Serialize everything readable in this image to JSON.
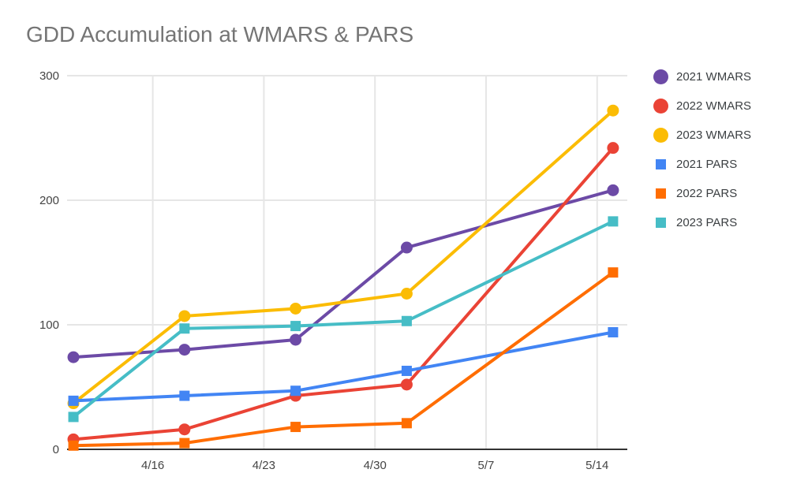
{
  "title": "GDD Accumulation at WMARS & PARS",
  "colors": {
    "background": "#ffffff",
    "title_text": "#757575",
    "axis_label_text": "#444444",
    "legend_text": "#3c4043",
    "gridline": "#e6e6e6",
    "axis_line": "#333333"
  },
  "chart_data": {
    "type": "line",
    "title": "GDD Accumulation at WMARS & PARS",
    "xlabel": "",
    "ylabel": "",
    "grid": true,
    "legend_position": "right",
    "ylim": [
      0,
      300
    ],
    "y_ticks": [
      0,
      100,
      200,
      300
    ],
    "x_tick_labels": [
      "4/16",
      "4/23",
      "4/30",
      "5/7",
      "5/14"
    ],
    "x_tick_days": [
      5,
      12,
      19,
      26,
      33
    ],
    "x_domain_days": [
      -0.4,
      34.9
    ],
    "x_dates": [
      "4/11",
      "4/18",
      "4/25",
      "5/2",
      "5/15"
    ],
    "x_days": [
      0,
      7,
      14,
      21,
      34
    ],
    "series": [
      {
        "name": "2021 WMARS",
        "marker": "circle",
        "color": "#6C4AA6",
        "values": [
          74,
          80,
          88,
          162,
          208
        ]
      },
      {
        "name": "2022 WMARS",
        "marker": "circle",
        "color": "#EA4335",
        "values": [
          8,
          16,
          43,
          52,
          242
        ]
      },
      {
        "name": "2023 WMARS",
        "marker": "circle",
        "color": "#FBBC04",
        "values": [
          37,
          107,
          113,
          125,
          272
        ]
      },
      {
        "name": "2021 PARS",
        "marker": "square",
        "color": "#4285F4",
        "values": [
          39,
          43,
          47,
          63,
          94
        ]
      },
      {
        "name": "2022 PARS",
        "marker": "square",
        "color": "#FF6D01",
        "values": [
          3,
          5,
          18,
          21,
          142
        ]
      },
      {
        "name": "2023 PARS",
        "marker": "square",
        "color": "#46BDC6",
        "values": [
          26,
          97,
          99,
          103,
          183
        ]
      }
    ]
  }
}
